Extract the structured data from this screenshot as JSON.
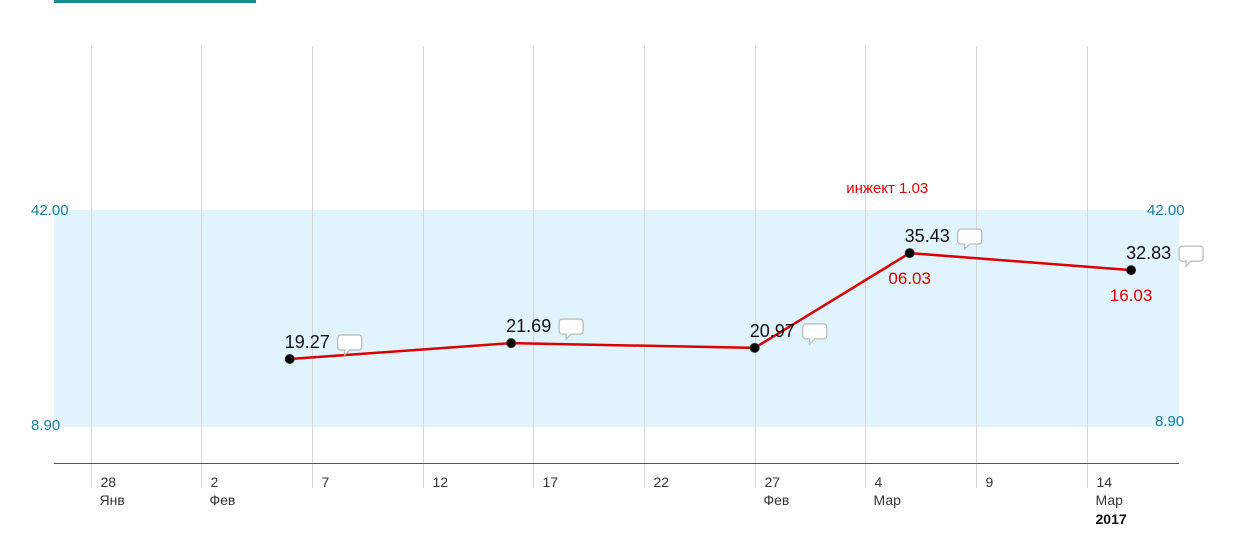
{
  "chart_data": {
    "type": "line",
    "title": "",
    "xlabel": "",
    "ylabel": "",
    "reference_range": {
      "low": 8.9,
      "high": 42.0,
      "low_label": "8.90",
      "high_label": "42.00"
    },
    "x_ticks": [
      {
        "day": "28",
        "month": "Янв",
        "year": ""
      },
      {
        "day": "2",
        "month": "Фев",
        "year": ""
      },
      {
        "day": "7",
        "month": "",
        "year": ""
      },
      {
        "day": "12",
        "month": "",
        "year": ""
      },
      {
        "day": "17",
        "month": "",
        "year": ""
      },
      {
        "day": "22",
        "month": "",
        "year": ""
      },
      {
        "day": "27",
        "month": "Фев",
        "year": ""
      },
      {
        "day": "4",
        "month": "Мар",
        "year": ""
      },
      {
        "day": "9",
        "month": "",
        "year": ""
      },
      {
        "day": "14",
        "month": "Мар",
        "year": "2017"
      }
    ],
    "series": [
      {
        "color": "#dd0000",
        "points": [
          {
            "x": "2017-02-06",
            "y": 19.27,
            "label": "19.27",
            "date_label": ""
          },
          {
            "x": "2017-02-16",
            "y": 21.69,
            "label": "21.69",
            "date_label": ""
          },
          {
            "x": "2017-02-27",
            "y": 20.97,
            "label": "20.97",
            "date_label": ""
          },
          {
            "x": "2017-03-06",
            "y": 35.43,
            "label": "35.43",
            "date_label": "06.03"
          },
          {
            "x": "2017-03-16",
            "y": 32.83,
            "label": "32.83",
            "date_label": "16.03"
          }
        ]
      }
    ],
    "annotations": [
      {
        "x": "2017-03-03",
        "text": "инжект 1.03"
      }
    ],
    "grid": true,
    "band_color": "#e1f3fc"
  }
}
